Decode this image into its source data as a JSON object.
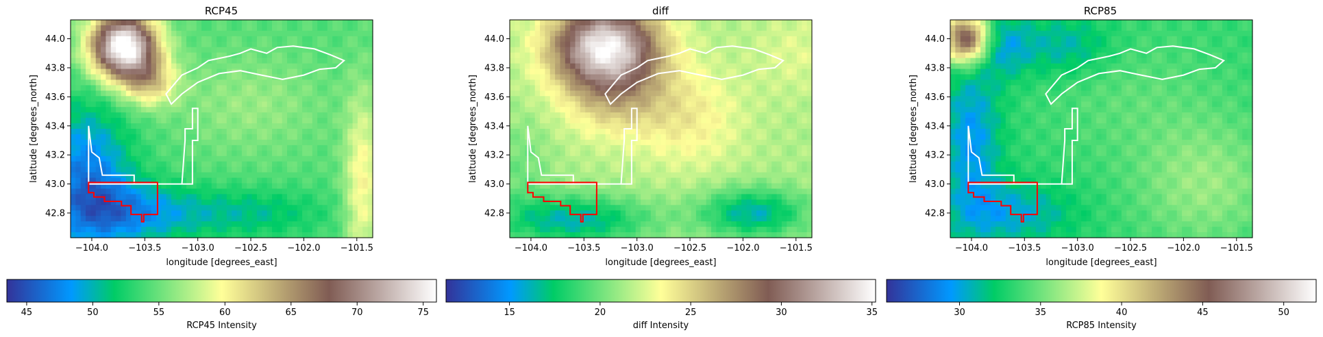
{
  "chart_data": [
    {
      "type": "heatmap",
      "title": "RCP45",
      "xlabel": "longitude [degrees_east]",
      "ylabel": "latitude [degrees_north]",
      "xlim": [
        -104.2,
        -101.35
      ],
      "ylim": [
        42.63,
        44.13
      ],
      "xticks": [
        -104.0,
        -103.5,
        -103.0,
        -102.5,
        -102.0,
        -101.5
      ],
      "xtick_labels": [
        "−104.0",
        "−103.5",
        "−103.0",
        "−102.5",
        "−102.0",
        "−101.5"
      ],
      "yticks": [
        42.8,
        43.0,
        43.2,
        43.4,
        43.6,
        43.8,
        44.0
      ],
      "ytick_labels": [
        "42.8",
        "43.0",
        "43.2",
        "43.4",
        "43.6",
        "43.8",
        "44.0"
      ],
      "colormap": "terrain",
      "colorbar": {
        "label": "RCP45 Intensity",
        "range": [
          43.5,
          76.0
        ],
        "ticks": [
          45,
          50,
          55,
          60,
          65,
          70,
          75
        ],
        "tick_labels": [
          "45",
          "50",
          "55",
          "60",
          "65",
          "70",
          "75"
        ]
      },
      "field": {
        "base": 0.33,
        "features": [
          {
            "lon": -103.7,
            "lat": 43.95,
            "amp": 0.72,
            "sx": 0.22,
            "sy": 0.16
          },
          {
            "lon": -103.45,
            "lat": 43.7,
            "amp": 0.22,
            "sx": 0.18,
            "sy": 0.12
          },
          {
            "lon": -104.05,
            "lat": 43.05,
            "amp": -0.22,
            "sx": 0.3,
            "sy": 0.35
          },
          {
            "lon": -103.6,
            "lat": 42.8,
            "amp": -0.17,
            "sx": 0.45,
            "sy": 0.15
          },
          {
            "lon": -102.5,
            "lat": 42.8,
            "amp": -0.1,
            "sx": 0.5,
            "sy": 0.12
          },
          {
            "lon": -101.45,
            "lat": 43.0,
            "amp": 0.18,
            "sx": 0.12,
            "sy": 0.45
          },
          {
            "lon": -102.5,
            "lat": 43.55,
            "amp": 0.07,
            "sx": 0.5,
            "sy": 0.25
          }
        ]
      }
    },
    {
      "type": "heatmap",
      "title": "diff",
      "xlabel": "longitude [degrees_east]",
      "ylabel": "latitude [degrees_north]",
      "xlim": [
        -104.2,
        -101.35
      ],
      "ylim": [
        42.63,
        44.13
      ],
      "xticks": [
        -104.0,
        -103.5,
        -103.0,
        -102.5,
        -102.0,
        -101.5
      ],
      "xtick_labels": [
        "−104.0",
        "−103.5",
        "−103.0",
        "−102.5",
        "−102.0",
        "−101.5"
      ],
      "yticks": [
        42.8,
        43.0,
        43.2,
        43.4,
        43.6,
        43.8,
        44.0
      ],
      "ytick_labels": [
        "42.8",
        "43.0",
        "43.2",
        "43.4",
        "43.6",
        "43.8",
        "44.0"
      ],
      "colormap": "terrain",
      "colorbar": {
        "label": "diff Intensity",
        "range": [
          11.5,
          35.2
        ],
        "ticks": [
          15,
          20,
          25,
          30,
          35
        ],
        "tick_labels": [
          "15",
          "20",
          "25",
          "30",
          "35"
        ]
      },
      "field": {
        "base": 0.42,
        "features": [
          {
            "lon": -103.3,
            "lat": 43.95,
            "amp": 0.55,
            "sx": 0.35,
            "sy": 0.2
          },
          {
            "lon": -103.2,
            "lat": 43.6,
            "amp": 0.15,
            "sx": 0.35,
            "sy": 0.2
          },
          {
            "lon": -102.5,
            "lat": 43.45,
            "amp": 0.1,
            "sx": 0.35,
            "sy": 0.25
          },
          {
            "lon": -103.6,
            "lat": 42.75,
            "amp": -0.22,
            "sx": 0.5,
            "sy": 0.12
          },
          {
            "lon": -101.9,
            "lat": 42.8,
            "amp": -0.22,
            "sx": 0.35,
            "sy": 0.12
          },
          {
            "lon": -104.1,
            "lat": 43.1,
            "amp": -0.06,
            "sx": 0.2,
            "sy": 0.25
          },
          {
            "lon": -101.5,
            "lat": 43.9,
            "amp": 0.05,
            "sx": 0.3,
            "sy": 0.2
          }
        ]
      }
    },
    {
      "type": "heatmap",
      "title": "RCP85",
      "xlabel": "longitude [degrees_east]",
      "ylabel": "latitude [degrees_north]",
      "xlim": [
        -104.2,
        -101.35
      ],
      "ylim": [
        42.63,
        44.13
      ],
      "xticks": [
        -104.0,
        -103.5,
        -103.0,
        -102.5,
        -102.0,
        -101.5
      ],
      "xtick_labels": [
        "−104.0",
        "−103.5",
        "−103.0",
        "−102.5",
        "−102.0",
        "−101.5"
      ],
      "yticks": [
        42.8,
        43.0,
        43.2,
        43.4,
        43.6,
        43.8,
        44.0
      ],
      "ytick_labels": [
        "42.8",
        "43.0",
        "43.2",
        "43.4",
        "43.6",
        "43.8",
        "44.0"
      ],
      "colormap": "terrain",
      "colorbar": {
        "label": "RCP85 Intensity",
        "range": [
          25.5,
          52.0
        ],
        "ticks": [
          30,
          35,
          40,
          45,
          50
        ],
        "tick_labels": [
          "30",
          "35",
          "40",
          "45",
          "50"
        ]
      },
      "field": {
        "base": 0.3,
        "features": [
          {
            "lon": -104.05,
            "lat": 44.0,
            "amp": 0.5,
            "sx": 0.15,
            "sy": 0.12
          },
          {
            "lon": -103.7,
            "lat": 43.95,
            "amp": -0.12,
            "sx": 0.2,
            "sy": 0.15
          },
          {
            "lon": -103.1,
            "lat": 43.95,
            "amp": -0.1,
            "sx": 0.3,
            "sy": 0.15
          },
          {
            "lon": -104.0,
            "lat": 43.3,
            "amp": -0.15,
            "sx": 0.2,
            "sy": 0.4
          },
          {
            "lon": -103.6,
            "lat": 42.8,
            "amp": -0.12,
            "sx": 0.4,
            "sy": 0.15
          },
          {
            "lon": -101.8,
            "lat": 43.0,
            "amp": 0.1,
            "sx": 0.45,
            "sy": 0.3
          },
          {
            "lon": -102.5,
            "lat": 43.6,
            "amp": 0.04,
            "sx": 0.6,
            "sy": 0.3
          }
        ]
      }
    }
  ],
  "overlays": {
    "white_outline_color": "#ffffff",
    "red_outline_color": "#ff0000"
  }
}
